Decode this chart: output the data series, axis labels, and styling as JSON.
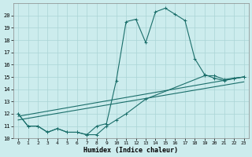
{
  "xlabel": "Humidex (Indice chaleur)",
  "bg_color": "#cceced",
  "grid_color": "#aad4d5",
  "line_color": "#1a6e6a",
  "xlim": [
    -0.5,
    23.5
  ],
  "ylim": [
    10,
    21
  ],
  "xticks": [
    0,
    1,
    2,
    3,
    4,
    5,
    6,
    7,
    8,
    9,
    10,
    11,
    12,
    13,
    14,
    15,
    16,
    17,
    18,
    19,
    20,
    21,
    22,
    23
  ],
  "yticks": [
    10,
    11,
    12,
    13,
    14,
    15,
    16,
    17,
    18,
    19,
    20
  ],
  "line1_x": [
    0,
    1,
    2,
    3,
    4,
    5,
    6,
    7,
    8,
    9,
    10,
    11,
    12,
    13,
    14,
    15,
    16,
    17,
    18,
    19,
    20,
    21,
    22,
    23
  ],
  "line1_y": [
    12.0,
    11.0,
    11.0,
    10.5,
    10.8,
    10.5,
    10.5,
    10.3,
    11.0,
    11.2,
    14.7,
    19.5,
    19.7,
    17.8,
    20.3,
    20.6,
    20.1,
    19.6,
    16.5,
    15.2,
    14.9,
    14.7,
    14.9,
    15.0
  ],
  "line2_x": [
    0,
    23
  ],
  "line2_y": [
    11.8,
    15.0
  ],
  "line3_x": [
    0,
    23
  ],
  "line3_y": [
    11.5,
    14.6
  ],
  "line4_x": [
    0,
    1,
    2,
    3,
    4,
    5,
    6,
    7,
    8,
    9,
    10,
    11,
    13,
    19,
    20,
    21,
    22,
    23
  ],
  "line4_y": [
    12.0,
    11.0,
    11.0,
    10.5,
    10.8,
    10.5,
    10.5,
    10.3,
    10.3,
    11.0,
    11.5,
    12.0,
    13.2,
    15.1,
    15.1,
    14.8,
    14.9,
    15.0
  ]
}
